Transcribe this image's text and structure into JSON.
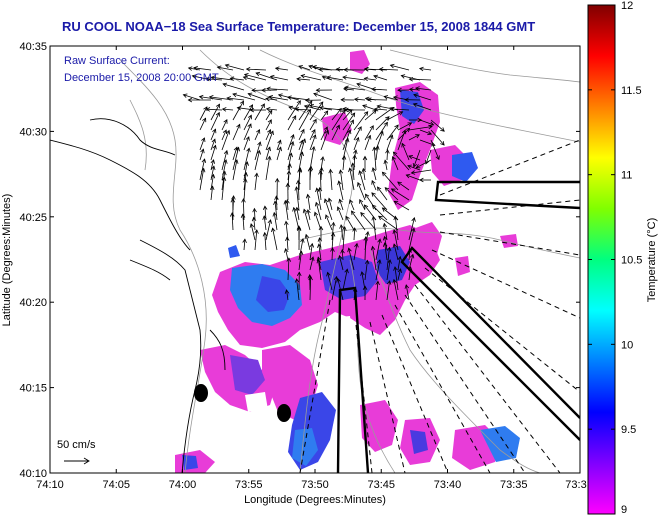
{
  "title": "RU COOL  NOAA−18  Sea Surface Temperature:  December 15, 2008 1844 GMT",
  "legend": {
    "line1": "Raw Surface Current:",
    "line2": "December 15, 2008 20:00 GMT",
    "scale_label": "50 cm/s"
  },
  "axes": {
    "xlabel": "Longitude (Degrees:Minutes)",
    "ylabel": "Latitude (Degrees:Minutes)",
    "x_ticks": [
      "74:10",
      "74:05",
      "74:00",
      "73:55",
      "73:50",
      "73:45",
      "73:40",
      "73:35",
      "73:3"
    ],
    "y_ticks": [
      "40:35",
      "40:30",
      "40:25",
      "40:20",
      "40:15",
      "40:10"
    ]
  },
  "colorbar": {
    "label": "Temperature (°C)",
    "min": 9,
    "max": 12,
    "ticks": [
      "12",
      "11.5",
      "11",
      "10.5",
      "10",
      "9.5",
      "9"
    ],
    "colors": [
      "#ff00ff",
      "#8000ff",
      "#0000ff",
      "#0080ff",
      "#00ffff",
      "#00ff80",
      "#80ff00",
      "#ffff00",
      "#ff8000",
      "#ff0000",
      "#800000"
    ]
  }
}
